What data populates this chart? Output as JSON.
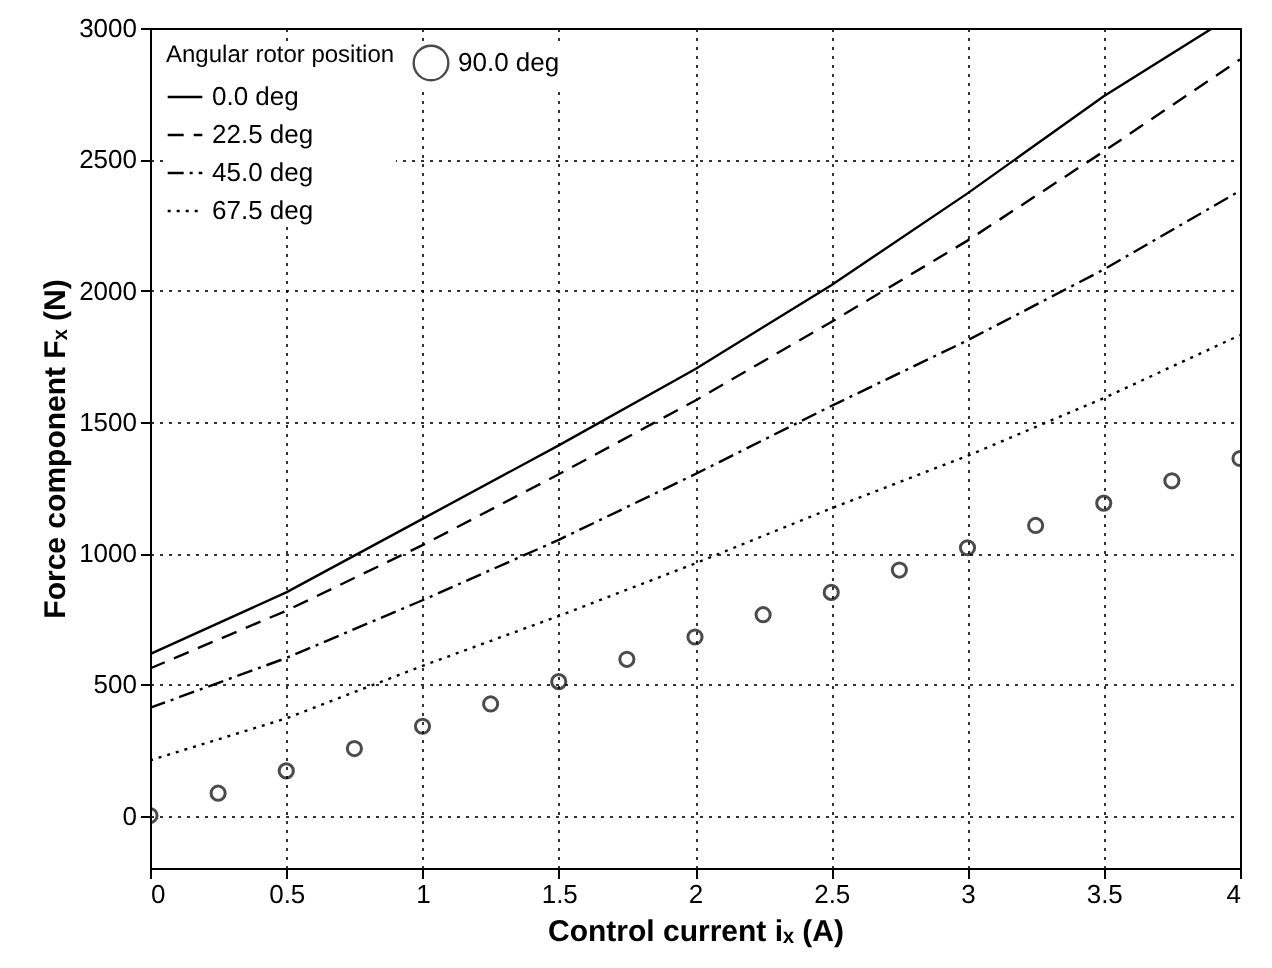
{
  "chart_data": {
    "type": "line",
    "xlabel": "Control current iₓ (A)",
    "ylabel": "Force component Fₓ (N)",
    "legend_title": "Angular rotor position",
    "x": [
      0,
      0.5,
      1,
      1.5,
      2,
      2.5,
      3,
      3.5,
      4
    ],
    "series": [
      {
        "name": "0.0 deg",
        "color": "#000000",
        "line_style": "solid",
        "x": [
          0,
          0.5,
          1,
          1.5,
          2,
          2.5,
          3,
          3.5,
          3.9
        ],
        "values": [
          615,
          850,
          1130,
          1410,
          1700,
          2020,
          2370,
          2740,
          3000
        ]
      },
      {
        "name": "22.5 deg",
        "color": "#000000",
        "line_style": "dashed",
        "values": [
          560,
          780,
          1030,
          1300,
          1580,
          1880,
          2190,
          2530,
          2880
        ]
      },
      {
        "name": "45.0 deg",
        "color": "#000000",
        "line_style": "dashdot",
        "values": [
          410,
          600,
          820,
          1050,
          1300,
          1560,
          1810,
          2080,
          2380
        ]
      },
      {
        "name": "67.5 deg",
        "color": "#000000",
        "line_style": "dotted",
        "values": [
          210,
          370,
          570,
          760,
          960,
          1170,
          1370,
          1590,
          1830
        ]
      },
      {
        "name": "90.0 deg",
        "color": "#000000",
        "type": "scatter",
        "marker": "circle",
        "x": [
          0,
          0.25,
          0.5,
          0.75,
          1,
          1.25,
          1.5,
          1.75,
          2,
          2.25,
          2.5,
          2.75,
          3,
          3.25,
          3.5,
          3.75,
          4
        ],
        "values": [
          0,
          85,
          170,
          255,
          340,
          425,
          510,
          595,
          680,
          765,
          850,
          935,
          1020,
          1105,
          1190,
          1275,
          1360
        ]
      }
    ],
    "xlim": [
      0,
      4
    ],
    "xticks": [
      0,
      0.5,
      1,
      1.5,
      2,
      2.5,
      3,
      3.5,
      4
    ],
    "ylim": [
      -200,
      3000
    ],
    "yticks": [
      0,
      500,
      1000,
      1500,
      2000,
      2500,
      3000
    ],
    "grid": true,
    "legend": "top left"
  }
}
